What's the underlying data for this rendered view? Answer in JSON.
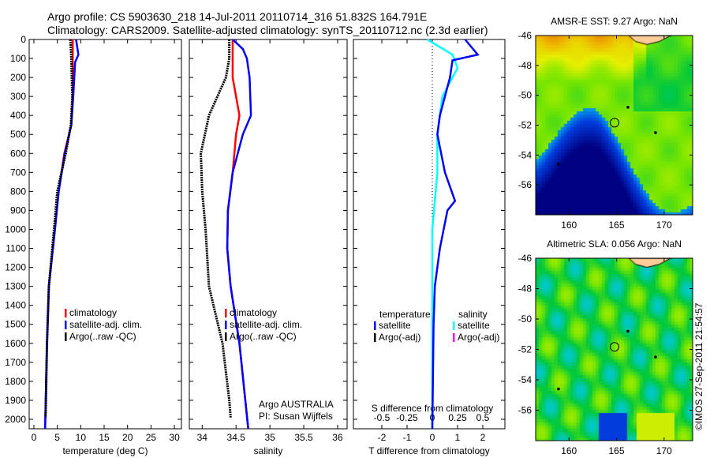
{
  "title_line1": "Argo profile: CS 5903630_218 14-Jul-2011 20110714_316 51.832S 164.791E",
  "title_line2": "Climatology: CARS2009. Satellite-adjusted climatology: synTS_20110712.nc (2.3d earlier)",
  "copyright": "©IMOS 27-Sep-2011 21:54:57",
  "colors": {
    "climatology": "#ff0000",
    "satellite": "#0000ff",
    "argo": "#000000",
    "salinity_satellite": "#00ffff",
    "salinity_argo": "#ff00ff"
  },
  "chart_data": [
    {
      "type": "line",
      "xlabel": "temperature (deg C)",
      "ylabel": "",
      "xlim": [
        -1,
        31.5
      ],
      "ylim": [
        2050,
        0
      ],
      "xticks": [
        "0",
        "5",
        "10",
        "15",
        "20",
        "25",
        "30"
      ],
      "yticks": [
        "0",
        "100",
        "200",
        "300",
        "400",
        "500",
        "600",
        "700",
        "800",
        "900",
        "1000",
        "1100",
        "1200",
        "1300",
        "1400",
        "1500",
        "1600",
        "1700",
        "1800",
        "1900",
        "2000"
      ],
      "legend": [
        "climatology",
        "satellite-adj. clim.",
        "Argo(..raw -QC)"
      ],
      "series": [
        {
          "name": "climatology",
          "depth": [
            0,
            100,
            300,
            450,
            600,
            800,
            1000,
            1300,
            1600,
            2050
          ],
          "values": [
            8.3,
            8.3,
            8.3,
            8.0,
            6.5,
            5.3,
            4.5,
            3.2,
            2.8,
            2.4
          ]
        },
        {
          "name": "satellite-adj. clim.",
          "depth": [
            0,
            80,
            120,
            300,
            450,
            600,
            800,
            1000,
            1300,
            1600,
            2050
          ],
          "values": [
            9.0,
            9.5,
            8.8,
            8.4,
            8.0,
            6.6,
            5.3,
            4.5,
            3.2,
            2.8,
            2.4
          ]
        },
        {
          "name": "Argo(..raw -QC)",
          "depth": [
            0,
            100,
            300,
            450,
            600,
            800,
            1000,
            1300,
            1600,
            1990
          ],
          "values": [
            7.8,
            8.0,
            8.2,
            7.9,
            6.8,
            5.0,
            4.3,
            3.2,
            2.8,
            2.5
          ]
        }
      ]
    },
    {
      "type": "line",
      "xlabel": "salinity",
      "xlim": [
        33.81,
        36.14
      ],
      "ylim": [
        2050,
        0
      ],
      "xticks": [
        "34",
        "34.5",
        "35",
        "35.5",
        "36"
      ],
      "legend": [
        "climatology",
        "satellite-adj. clim.",
        "Argo(..raw -QC)"
      ],
      "annotation": [
        "Argo AUSTRALIA",
        "PI: Susan Wijffels"
      ],
      "series": [
        {
          "name": "climatology",
          "depth": [
            0,
            200,
            300,
            400,
            500,
            700,
            900,
            1100,
            1300,
            1600,
            2050
          ],
          "values": [
            34.45,
            34.45,
            34.5,
            34.55,
            34.5,
            34.45,
            34.38,
            34.37,
            34.42,
            34.55,
            34.68
          ]
        },
        {
          "name": "satellite-adj. clim.",
          "depth": [
            0,
            50,
            100,
            200,
            400,
            500,
            700,
            900,
            1100,
            1300,
            1600,
            2050
          ],
          "values": [
            34.45,
            34.6,
            34.66,
            34.7,
            34.72,
            34.6,
            34.45,
            34.38,
            34.37,
            34.42,
            34.55,
            34.68
          ]
        },
        {
          "name": "Argo(..raw -QC)",
          "depth": [
            0,
            100,
            200,
            400,
            600,
            800,
            1000,
            1300,
            1600,
            1900,
            1990
          ],
          "values": [
            34.4,
            34.4,
            34.35,
            34.1,
            33.98,
            34.0,
            34.05,
            34.1,
            34.3,
            34.4,
            34.42
          ]
        }
      ]
    },
    {
      "type": "line",
      "xlabel": "T difference from climatology",
      "xlabel2": "S difference from climatology",
      "xlim": [
        -3.125,
        2.875
      ],
      "ylim": [
        2050,
        0
      ],
      "xticks": [
        "-2",
        "-1",
        "0",
        "1",
        "2"
      ],
      "xticks2": [
        "-0.5",
        "-0.25",
        "0",
        "0.25",
        "0.5"
      ],
      "legend_headers": [
        "temperature",
        "salinity"
      ],
      "legend": [
        "satellite",
        "Argo(-adj)",
        "satellite",
        "Argo(-adj)"
      ],
      "series": [
        {
          "name": "temperature satellite",
          "depth": [
            0,
            80,
            110,
            200,
            400,
            500,
            700,
            850,
            900,
            1100,
            1300,
            1500,
            2050
          ],
          "values": [
            1.3,
            1.8,
            0.8,
            0.7,
            0.3,
            0.2,
            0.5,
            0.9,
            0.6,
            0.3,
            0.1,
            0.05,
            0
          ]
        },
        {
          "name": "salinity satellite",
          "depth": [
            0,
            80,
            150,
            300,
            500,
            700,
            1000,
            1500,
            2050
          ],
          "values": [
            -0.05,
            0.2,
            0.25,
            0.1,
            0.05,
            0.05,
            0.0,
            0.0,
            0.0
          ]
        }
      ]
    },
    {
      "type": "heatmap",
      "title": "AMSR-E SST: 9.27 Argo: NaN",
      "xlim": [
        156.5,
        173
      ],
      "ylim": [
        -58,
        -46
      ],
      "xticks": [
        "160",
        "165",
        "170"
      ],
      "yticks": [
        "-46",
        "-48",
        "-50",
        "-52",
        "-54",
        "-56"
      ],
      "argo_position": [
        164.791,
        -51.832
      ]
    },
    {
      "type": "heatmap",
      "title": "Altimetric SLA: 0.056 Argo: NaN",
      "xlim": [
        156.5,
        173
      ],
      "ylim": [
        -58,
        -46
      ],
      "xticks": [
        "160",
        "165",
        "170"
      ],
      "yticks": [
        "-46",
        "-48",
        "-50",
        "-52",
        "-54",
        "-56"
      ],
      "argo_position": [
        164.791,
        -51.832
      ]
    }
  ]
}
